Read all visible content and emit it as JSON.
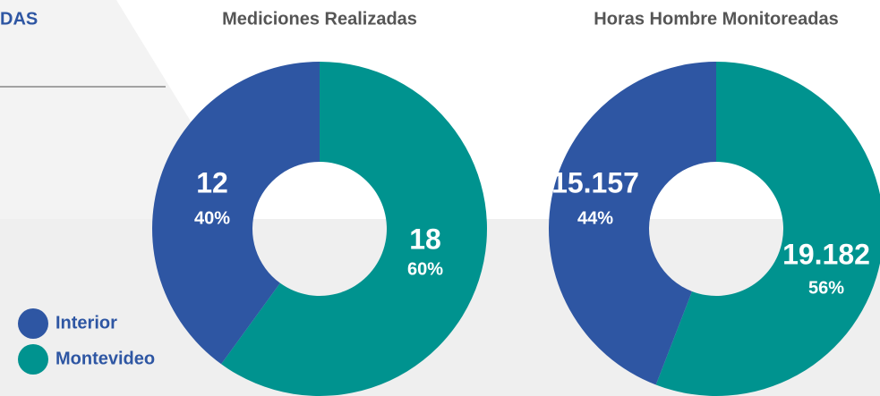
{
  "header_fragment": "DAS",
  "chart_data": [
    {
      "type": "donut",
      "title": "Mediciones Realizadas",
      "labels": [
        "Interior",
        "Montevideo"
      ],
      "colors": [
        "#2e56a3",
        "#00938f"
      ],
      "values": [
        12,
        18
      ],
      "percent_labels": [
        "40%",
        "60%"
      ]
    },
    {
      "type": "donut",
      "title": "Horas Hombre Monitoreadas",
      "labels": [
        "Interior",
        "Montevideo"
      ],
      "colors": [
        "#2e56a3",
        "#00938f"
      ],
      "values": [
        15157,
        19182
      ],
      "value_labels": [
        "15.157",
        "19.182"
      ],
      "percent_labels": [
        "44%",
        "56%"
      ]
    }
  ]
}
